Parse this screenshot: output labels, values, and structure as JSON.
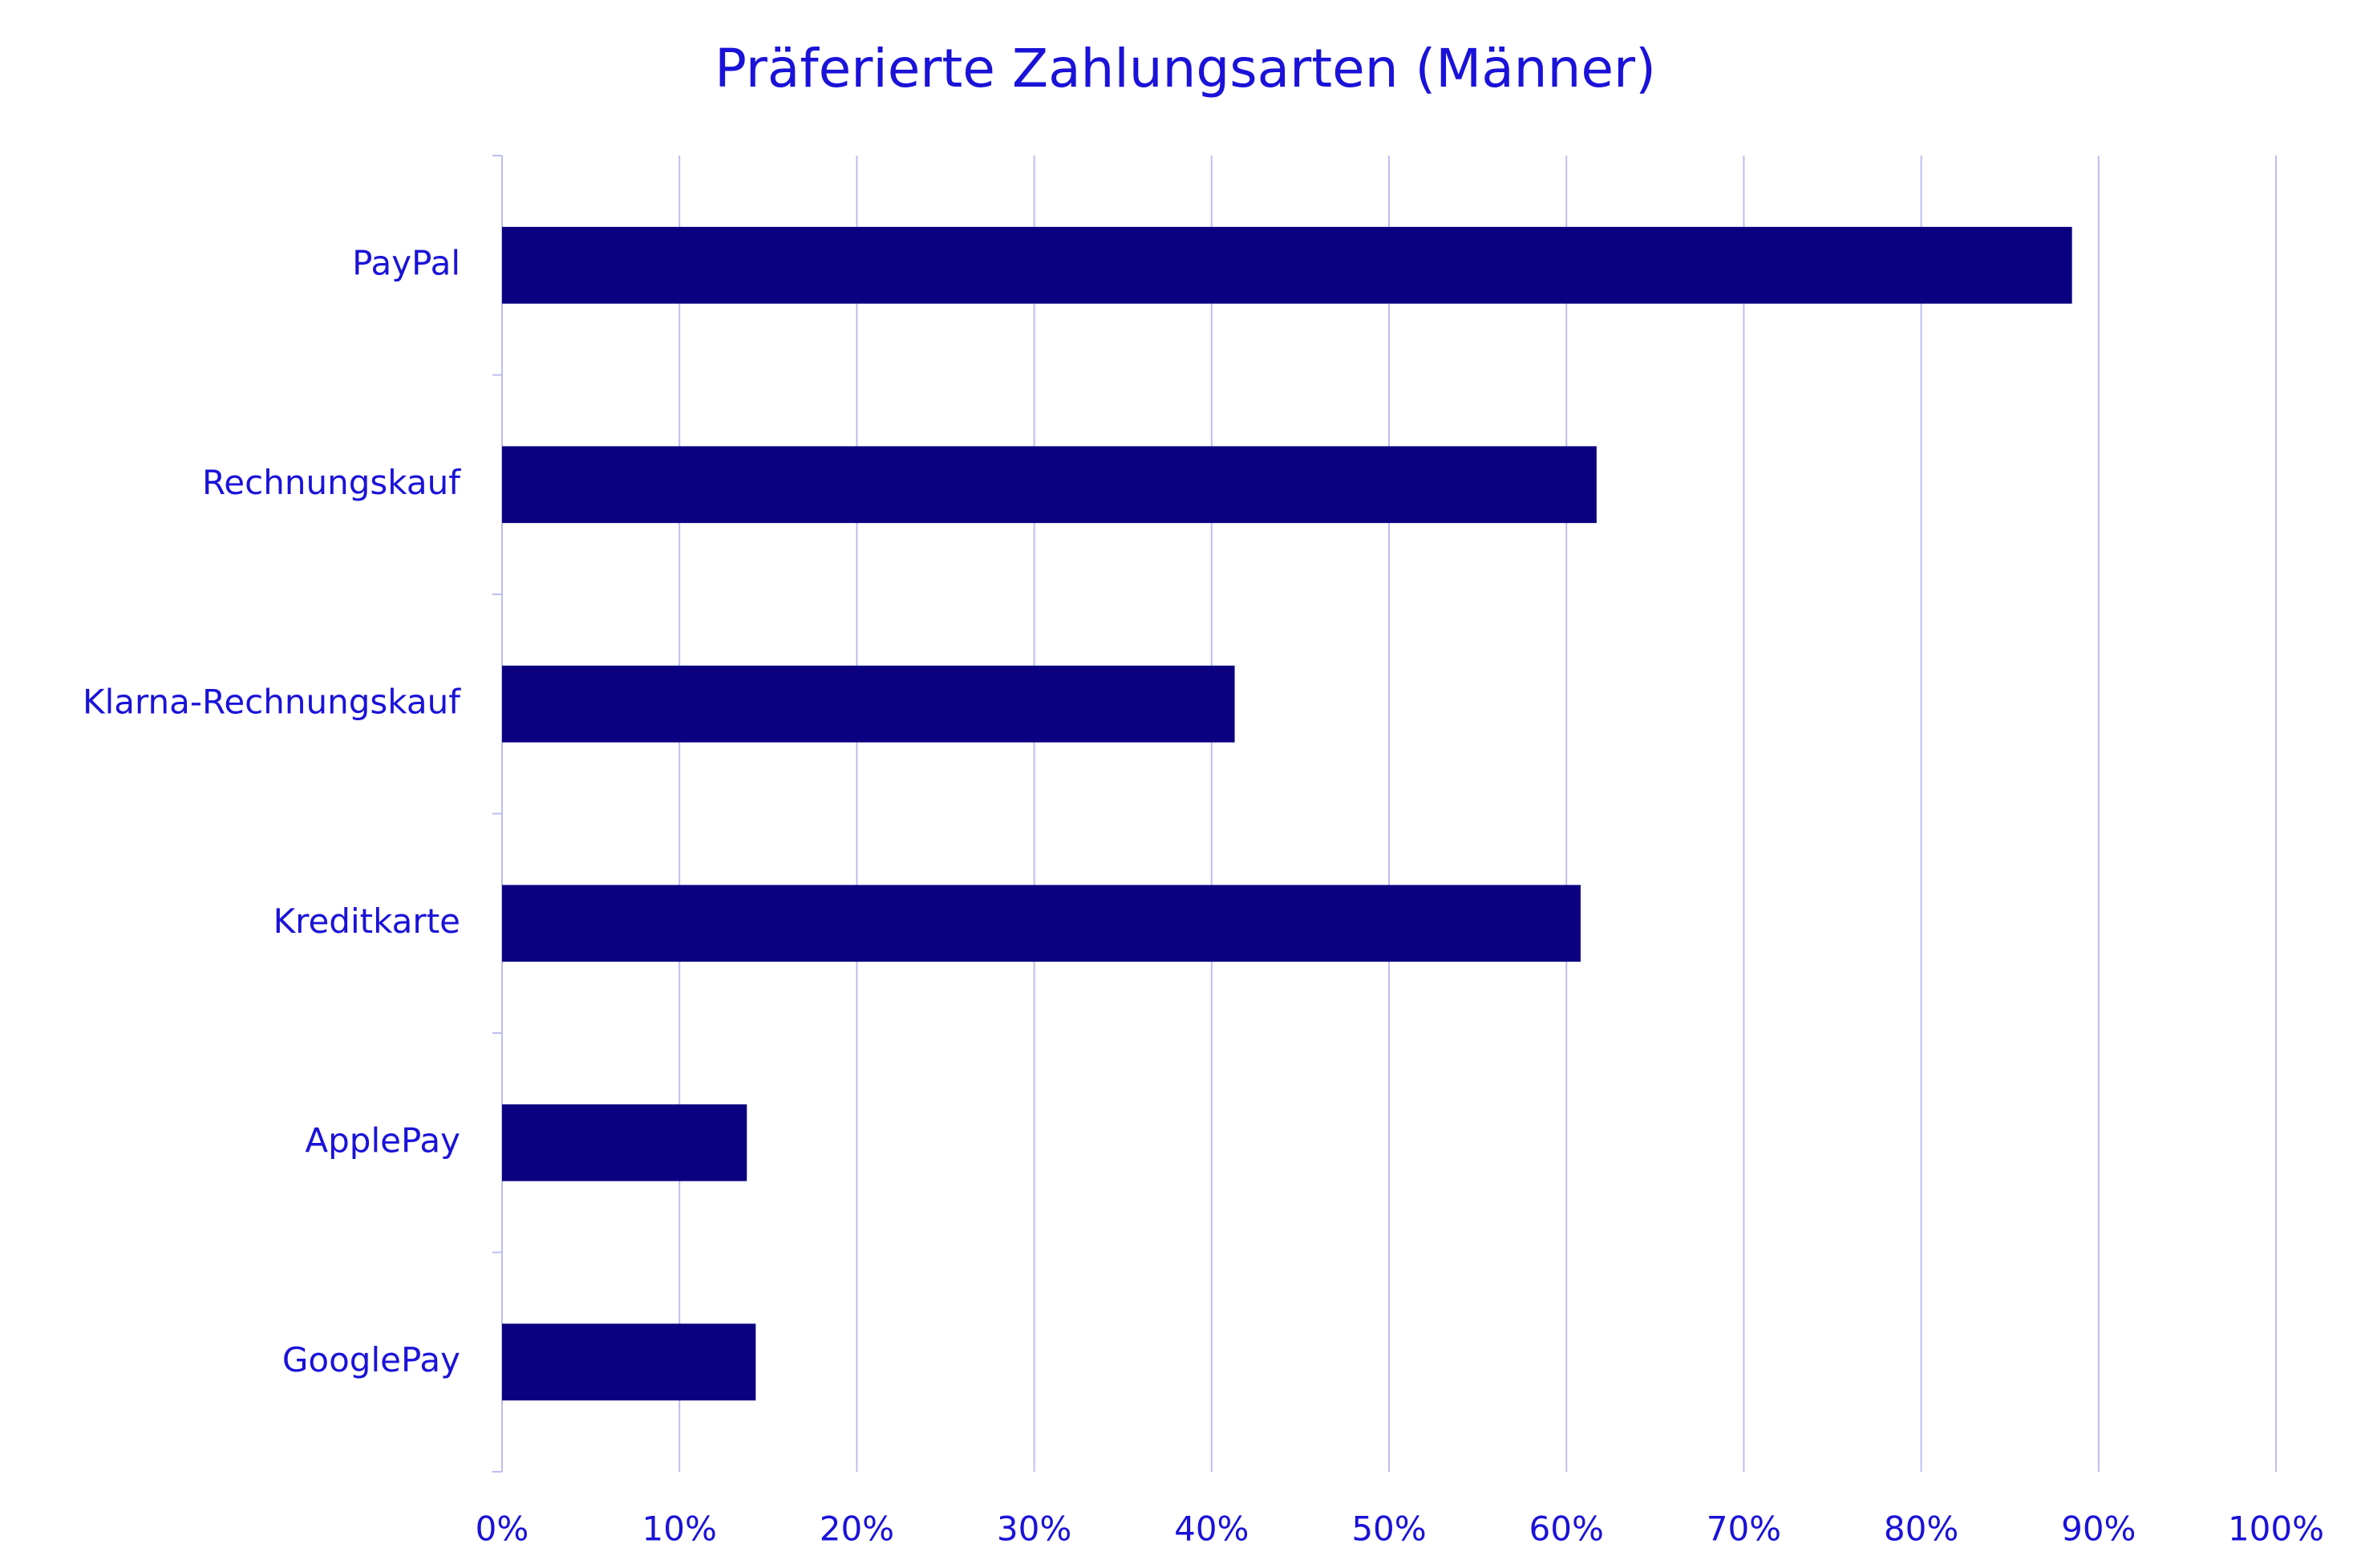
{
  "chart_data": {
    "type": "bar",
    "orientation": "horizontal",
    "title": "Präferierte Zahlungsarten (Männer)",
    "categories": [
      "PayPal",
      "Rechnungskauf",
      "Klarna-Rechnungskauf",
      "Kreditkarte",
      "ApplePay",
      "GooglePay"
    ],
    "values": [
      88.5,
      61.7,
      41.3,
      60.8,
      13.8,
      14.3
    ],
    "color": "#0b0080",
    "xlim": [
      0,
      100
    ],
    "xticks": [
      {
        "value": 0,
        "label": "0%"
      },
      {
        "value": 10,
        "label": "10%"
      },
      {
        "value": 20,
        "label": "20%"
      },
      {
        "value": 30,
        "label": "30%"
      },
      {
        "value": 40,
        "label": "40%"
      },
      {
        "value": 50,
        "label": "50%"
      },
      {
        "value": 60,
        "label": "60%"
      },
      {
        "value": 70,
        "label": "70%"
      },
      {
        "value": 80,
        "label": "80%"
      },
      {
        "value": 90,
        "label": "90%"
      },
      {
        "value": 100,
        "label": "100%"
      }
    ],
    "grid": true
  }
}
